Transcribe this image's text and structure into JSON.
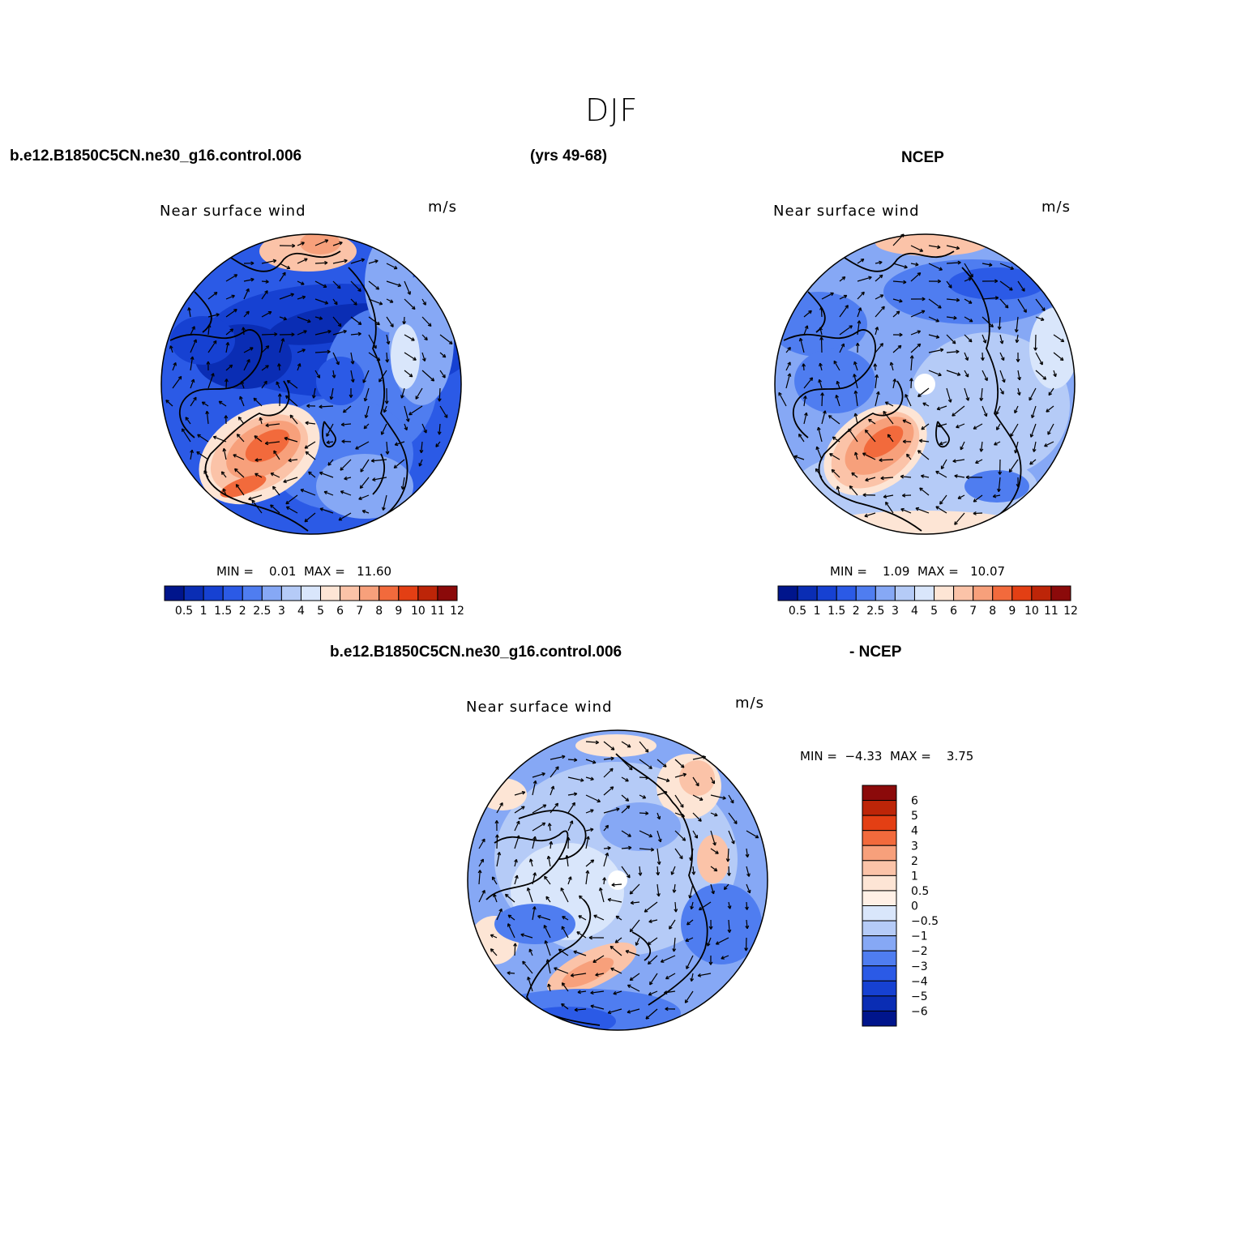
{
  "title": "DJF",
  "header": {
    "case_name": "b.e12.B1850C5CN.ne30_g16.control.006",
    "years": "(yrs 49-68)",
    "obs_name": "NCEP",
    "diff_case": "b.e12.B1850C5CN.ne30_g16.control.006",
    "diff_obs": "- NCEP"
  },
  "panels": [
    {
      "id": "model",
      "field_label": "Near surface wind",
      "units": "m/s",
      "min_label": "MIN =",
      "min_value": "0.01",
      "max_label": "MAX =",
      "max_value": "11.60"
    },
    {
      "id": "obs",
      "field_label": "Near surface wind",
      "units": "m/s",
      "min_label": "MIN =",
      "min_value": "1.09",
      "max_label": "MAX =",
      "max_value": "10.07"
    },
    {
      "id": "diff",
      "field_label": "Near surface wind",
      "units": "m/s",
      "min_label": "MIN =",
      "min_value": "−4.33",
      "max_label": "MAX =",
      "max_value": "3.75"
    }
  ],
  "colorbar_abs": {
    "levels": [
      "0.5",
      "1",
      "1.5",
      "2",
      "2.5",
      "3",
      "4",
      "5",
      "6",
      "7",
      "8",
      "9",
      "10",
      "11",
      "12"
    ],
    "colors": [
      "#00158c",
      "#0a2db4",
      "#1641d2",
      "#2b5ae6",
      "#4f7df0",
      "#86a8f5",
      "#b5cbf7",
      "#d9e6fb",
      "#fde5d5",
      "#fbc3a8",
      "#f7a07b",
      "#f26a3c",
      "#e33f14",
      "#bd2508",
      "#8b0a0a"
    ]
  },
  "colorbar_diff": {
    "levels": [
      "6",
      "5",
      "4",
      "3",
      "2",
      "1",
      "0.5",
      "0",
      "−0.5",
      "−1",
      "−2",
      "−3",
      "−4",
      "−5",
      "−6"
    ],
    "colors": [
      "#8b0a0a",
      "#bd2508",
      "#e33f14",
      "#f26a3c",
      "#f7a07b",
      "#fbc3a8",
      "#fde5d5",
      "#fff0e6",
      "#d9e6fb",
      "#b5cbf7",
      "#86a8f5",
      "#4f7df0",
      "#2b5ae6",
      "#1641d2",
      "#0a2db4",
      "#00158c"
    ]
  }
}
